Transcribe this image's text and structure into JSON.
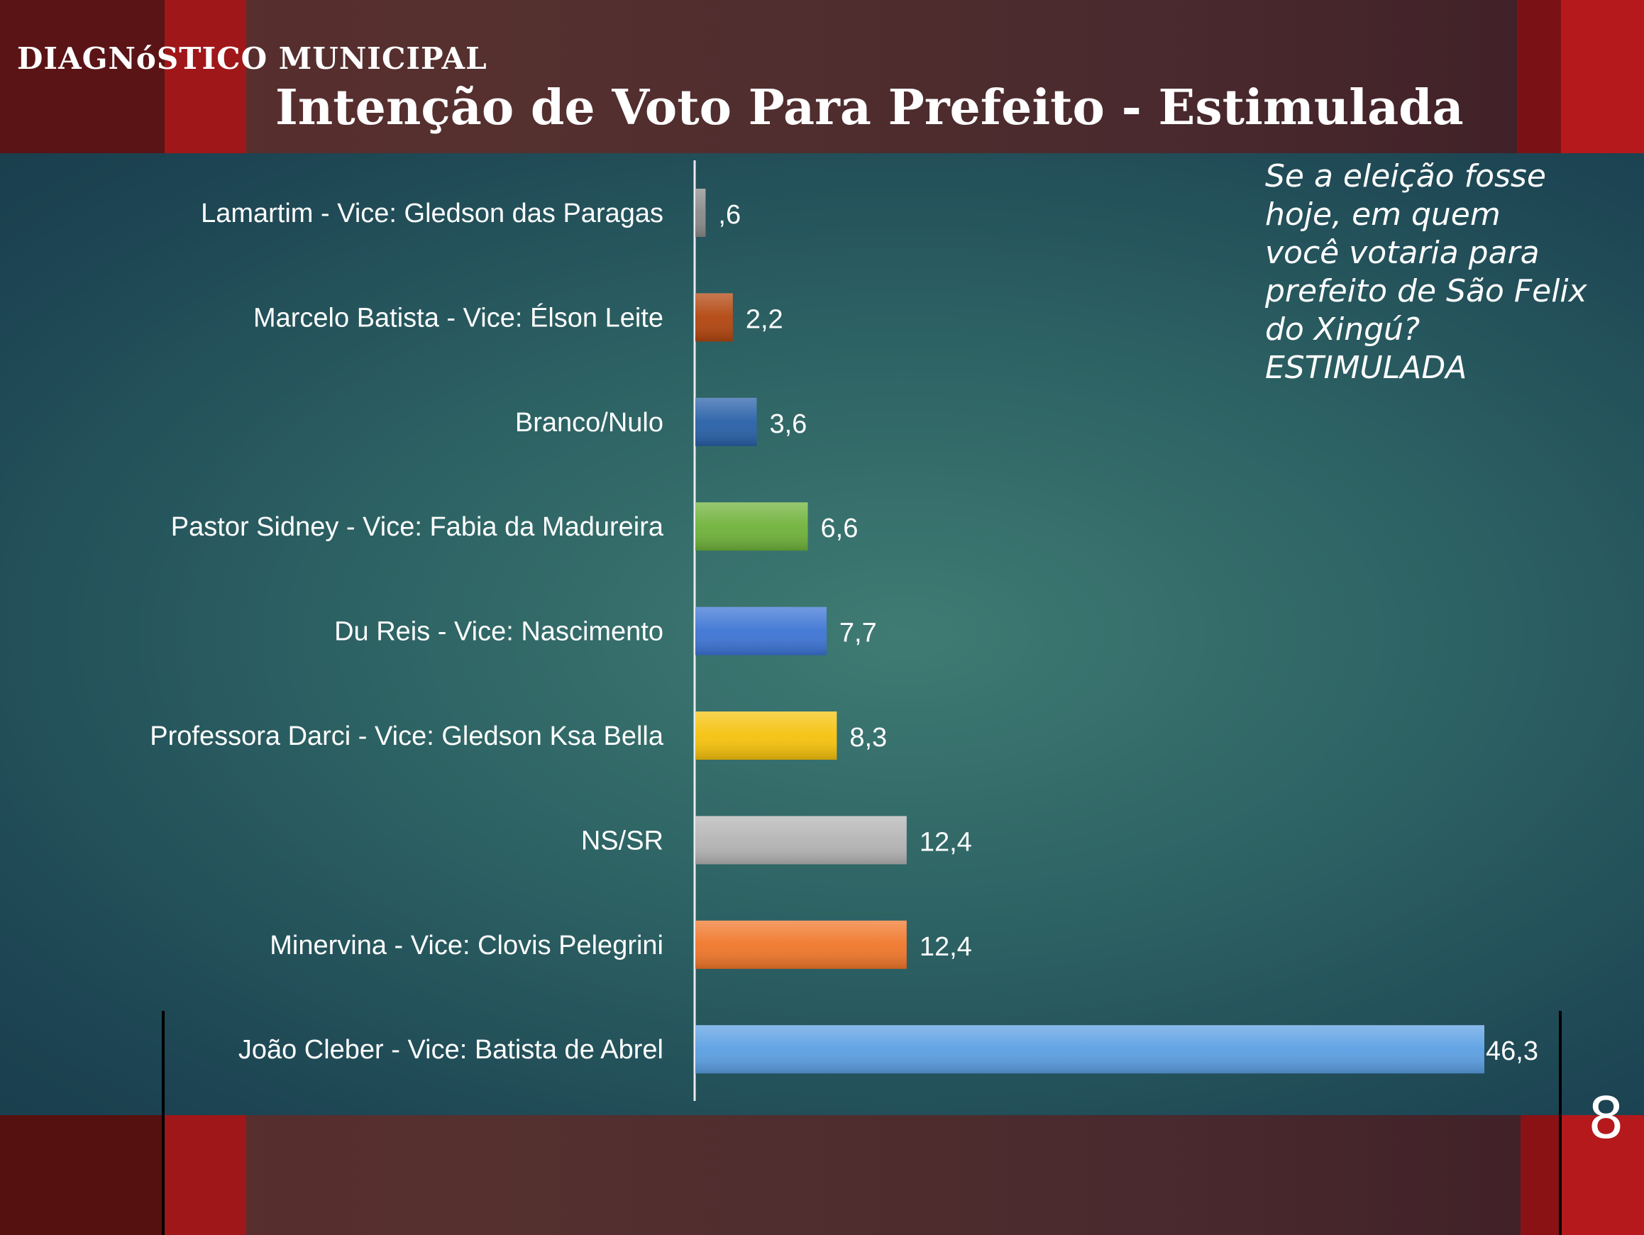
{
  "header": {
    "subtitle": "DIAGNóSTICO MUNICIPAL",
    "title": "Intenção de Voto Para Prefeito - Estimulada"
  },
  "question": "Se a eleição fosse\nhoje, em quem\nvocê votaria para\nprefeito de São Felix\ndo Xingú?\nESTIMULADA",
  "page_number": "8",
  "chart_data": {
    "type": "bar",
    "orientation": "horizontal",
    "categories": [
      "Lamartim - Vice: Gledson das Paragas",
      "Marcelo Batista - Vice: Élson Leite",
      "Branco/Nulo",
      "Pastor Sidney - Vice: Fabia da Madureira",
      "Du Reis - Vice: Nascimento",
      "Professora Darci - Vice: Gledson Ksa Bella",
      "NS/SR",
      "Minervina - Vice: Clovis Pelegrini",
      "João Cleber - Vice: Batista de Abrel"
    ],
    "values": [
      0.6,
      2.2,
      3.6,
      6.6,
      7.7,
      8.3,
      12.4,
      12.4,
      46.3
    ],
    "data_labels": [
      ",6",
      "2,2",
      "3,6",
      "6,6",
      "7,7",
      "8,3",
      "12,4",
      "12,4",
      "46,3"
    ],
    "colors": [
      "#8a8a8a",
      "#b2450e",
      "#2860a8",
      "#6fb23a",
      "#3c74d4",
      "#f5c20c",
      "#b4b4b4",
      "#f0762a",
      "#5b9fe3"
    ],
    "xlim": [
      0,
      46.3
    ],
    "grid": false,
    "legend": "none"
  }
}
